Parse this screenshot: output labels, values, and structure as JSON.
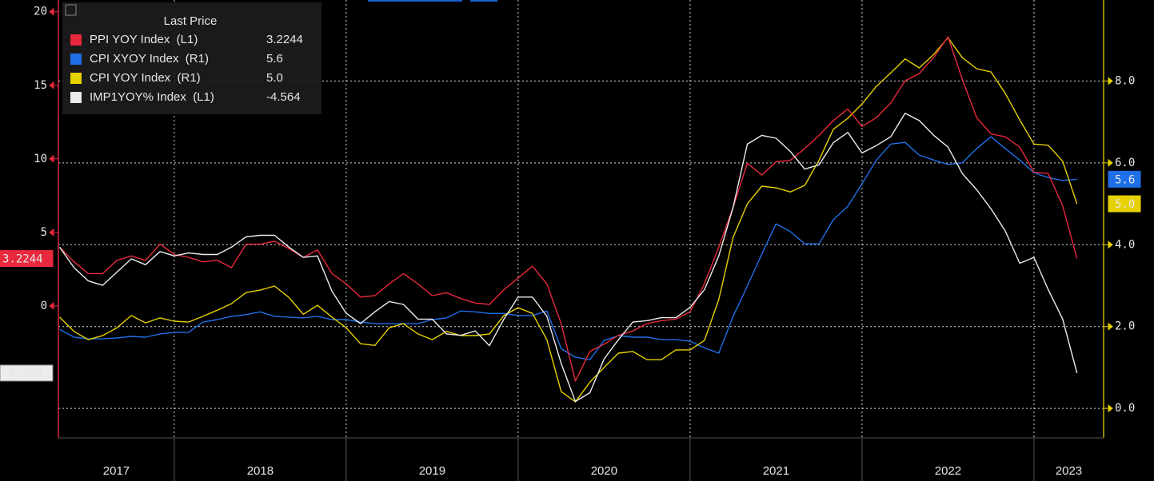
{
  "chart_data": {
    "type": "line",
    "legend_title": "Last Price",
    "x": [
      2017.333,
      2017.417,
      2017.5,
      2017.583,
      2017.667,
      2017.75,
      2017.833,
      2017.917,
      2018,
      2018.083,
      2018.167,
      2018.25,
      2018.333,
      2018.417,
      2018.5,
      2018.583,
      2018.667,
      2018.75,
      2018.833,
      2018.917,
      2019,
      2019.083,
      2019.167,
      2019.25,
      2019.333,
      2019.417,
      2019.5,
      2019.583,
      2019.667,
      2019.75,
      2019.833,
      2019.917,
      2020,
      2020.083,
      2020.167,
      2020.25,
      2020.333,
      2020.417,
      2020.5,
      2020.583,
      2020.667,
      2020.75,
      2020.833,
      2020.917,
      2021,
      2021.083,
      2021.167,
      2021.25,
      2021.333,
      2021.417,
      2021.5,
      2021.583,
      2021.667,
      2021.75,
      2021.833,
      2021.917,
      2022,
      2022.083,
      2022.167,
      2022.25,
      2022.333,
      2022.417,
      2022.5,
      2022.583,
      2022.667,
      2022.75,
      2022.833,
      2022.917,
      2023,
      2023.083,
      2023.167,
      2023.25
    ],
    "xlim": [
      2017.326,
      2023.405
    ],
    "xticks": [
      2018,
      2019,
      2020,
      2021,
      2022,
      2023
    ],
    "year_labels": [
      "2017",
      "2018",
      "2019",
      "2020",
      "2021",
      "2022",
      "2023"
    ],
    "ylim": [
      -8.97,
      20.8
    ],
    "yticks": [
      0,
      5,
      10,
      15,
      20
    ],
    "y2lim": [
      -0.72,
      9.98
    ],
    "y2ticks": [
      {
        "value": 0,
        "label": "0.0"
      },
      {
        "value": 2,
        "label": "2.0"
      },
      {
        "value": 4,
        "label": "4.0"
      },
      {
        "value": 6,
        "label": "6.0"
      },
      {
        "value": 8,
        "label": "8.0"
      }
    ],
    "grid": true,
    "series": [
      {
        "name": "PPI YOY Index  (L1)",
        "color": "#e8283c",
        "axis": "y",
        "last_label": "3.2244",
        "values": [
          4.0,
          3.0,
          2.2,
          2.2,
          3.1,
          3.4,
          3.1,
          4.2,
          3.5,
          3.3,
          3.0,
          3.1,
          2.6,
          4.2,
          4.2,
          4.4,
          3.9,
          3.3,
          3.8,
          2.2,
          1.5,
          0.6,
          0.7,
          1.5,
          2.2,
          1.5,
          0.7,
          0.9,
          0.5,
          0.2,
          0.1,
          1.1,
          1.9,
          2.7,
          1.5,
          -1.2,
          -5.1,
          -3.1,
          -2.6,
          -2.0,
          -1.7,
          -1.2,
          -1.0,
          -0.9,
          -0.4,
          1.5,
          4.0,
          6.7,
          9.7,
          8.9,
          9.8,
          9.9,
          10.7,
          11.6,
          12.6,
          13.4,
          12.2,
          12.8,
          13.8,
          15.3,
          15.8,
          16.9,
          18.3,
          15.4,
          12.8,
          11.7,
          11.5,
          10.8,
          9.1,
          9.0,
          6.8,
          3.2244
        ]
      },
      {
        "name": "CPI XYOY Index  (R1)",
        "color": "#1f6fe6",
        "axis": "y2",
        "last_label": "5.6",
        "values": [
          1.93,
          1.74,
          1.7,
          1.7,
          1.72,
          1.76,
          1.74,
          1.82,
          1.86,
          1.86,
          2.11,
          2.17,
          2.25,
          2.29,
          2.36,
          2.25,
          2.23,
          2.21,
          2.25,
          2.17,
          2.17,
          2.11,
          2.07,
          2.07,
          2.07,
          2.07,
          2.17,
          2.21,
          2.38,
          2.36,
          2.32,
          2.32,
          2.27,
          2.27,
          2.38,
          1.46,
          1.25,
          1.19,
          1.66,
          1.78,
          1.74,
          1.74,
          1.68,
          1.68,
          1.64,
          1.48,
          1.35,
          2.25,
          2.99,
          3.77,
          4.51,
          4.32,
          4.02,
          4.02,
          4.61,
          4.94,
          5.49,
          6.07,
          6.46,
          6.5,
          6.19,
          6.07,
          5.96,
          6.0,
          6.35,
          6.64,
          6.35,
          6.07,
          5.76,
          5.64,
          5.57,
          5.6
        ]
      },
      {
        "name": "CPI YOY Index  (R1)",
        "color": "#e6d200",
        "axis": "y2",
        "last_label": "5.0",
        "values": [
          2.23,
          1.88,
          1.68,
          1.78,
          1.97,
          2.27,
          2.09,
          2.21,
          2.13,
          2.11,
          2.25,
          2.4,
          2.56,
          2.83,
          2.89,
          2.99,
          2.71,
          2.3,
          2.52,
          2.23,
          1.97,
          1.58,
          1.54,
          1.97,
          2.07,
          1.82,
          1.68,
          1.88,
          1.78,
          1.78,
          1.82,
          2.27,
          2.46,
          2.32,
          1.68,
          0.41,
          0.16,
          0.64,
          1.0,
          1.35,
          1.39,
          1.19,
          1.19,
          1.43,
          1.43,
          1.66,
          2.66,
          4.18,
          5.0,
          5.43,
          5.39,
          5.29,
          5.45,
          6.07,
          6.82,
          7.09,
          7.44,
          7.87,
          8.2,
          8.54,
          8.32,
          8.65,
          9.06,
          8.57,
          8.3,
          8.22,
          7.7,
          7.05,
          6.46,
          6.43,
          6.04,
          5.0
        ]
      },
      {
        "name": "IMP1YOY% Index  (L1)",
        "color": "#ececec",
        "axis": "y",
        "last_label": "-4.564",
        "values": [
          4.0,
          2.6,
          1.7,
          1.4,
          2.3,
          3.2,
          2.8,
          3.7,
          3.4,
          3.6,
          3.5,
          3.5,
          4.0,
          4.7,
          4.8,
          4.8,
          4.0,
          3.3,
          3.4,
          1.0,
          -0.5,
          -1.2,
          -0.4,
          0.3,
          0.1,
          -0.9,
          -0.9,
          -1.9,
          -2.0,
          -1.7,
          -2.7,
          -0.9,
          0.6,
          0.6,
          -0.7,
          -3.9,
          -6.5,
          -5.9,
          -3.6,
          -2.3,
          -1.1,
          -1.0,
          -0.8,
          -0.8,
          -0.1,
          1.1,
          3.4,
          6.7,
          11.0,
          11.6,
          11.4,
          10.5,
          9.3,
          9.6,
          11.1,
          11.8,
          10.4,
          10.9,
          11.5,
          13.1,
          12.6,
          11.6,
          10.8,
          9.0,
          7.9,
          6.6,
          5.1,
          2.9,
          3.3,
          1.1,
          -0.9,
          -4.564
        ]
      }
    ]
  }
}
